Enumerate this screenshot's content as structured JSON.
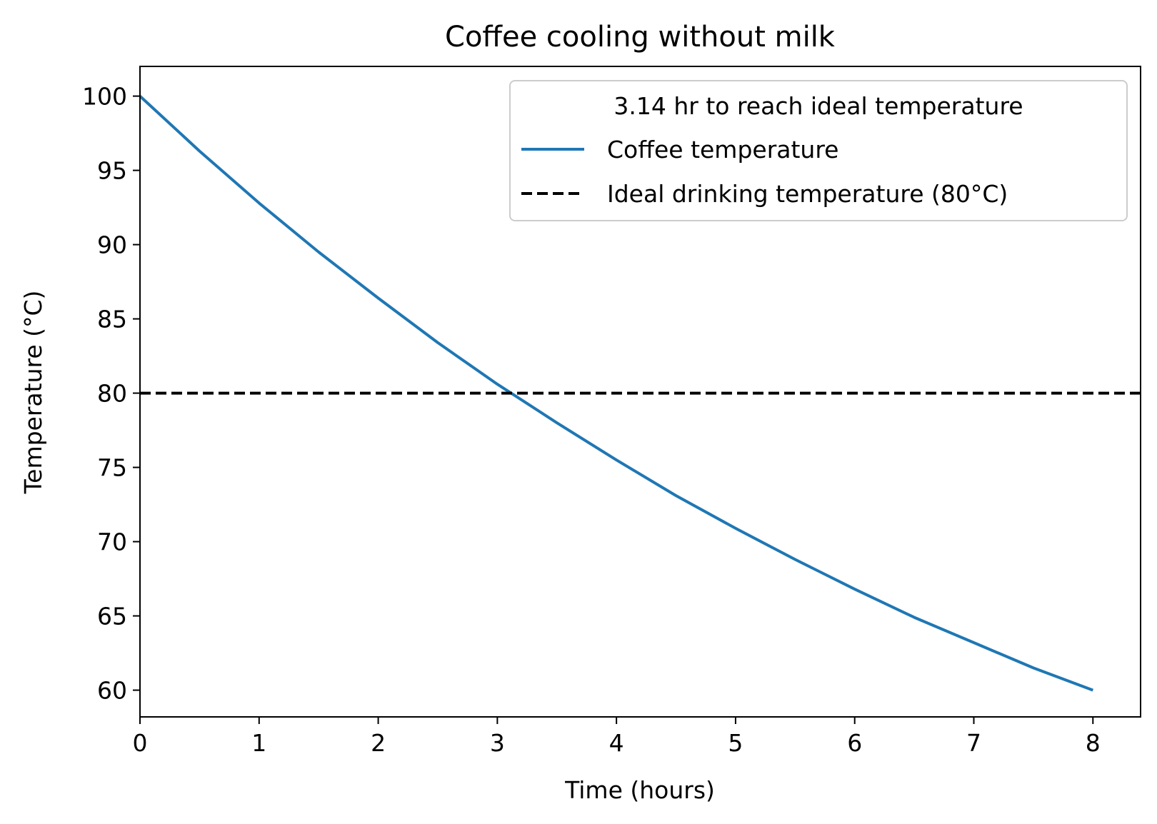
{
  "chart_data": {
    "type": "line",
    "title": "Coffee cooling without milk",
    "xlabel": "Time (hours)",
    "ylabel": "Temperature (°C)",
    "xlim": [
      0,
      8.4
    ],
    "ylim": [
      58.2,
      102
    ],
    "xticks": [
      0,
      1,
      2,
      3,
      4,
      5,
      6,
      7,
      8
    ],
    "yticks": [
      60,
      65,
      70,
      75,
      80,
      85,
      90,
      95,
      100
    ],
    "grid": false,
    "legend": {
      "placement": "top-right",
      "title": "3.14 hr to reach ideal temperature"
    },
    "series": [
      {
        "name": "Coffee temperature",
        "color": "#1f77b4",
        "style": "solid",
        "x": [
          0,
          0.5,
          1,
          1.5,
          2,
          2.5,
          3,
          3.5,
          4,
          4.5,
          5,
          5.5,
          6,
          6.5,
          7,
          7.5,
          8
        ],
        "y": [
          100,
          96.3,
          92.8,
          89.5,
          86.4,
          83.4,
          80.6,
          78.0,
          75.5,
          73.1,
          70.9,
          68.8,
          66.8,
          64.9,
          63.2,
          61.5,
          60.0
        ]
      },
      {
        "name": "Ideal drinking temperature (80°C)",
        "color": "#000000",
        "style": "dashed",
        "type": "hline",
        "y": 80
      }
    ]
  }
}
